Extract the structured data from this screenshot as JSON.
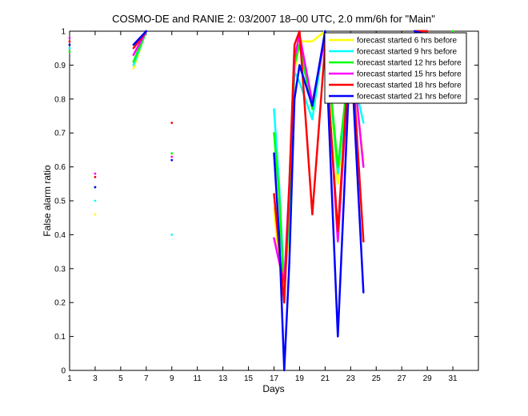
{
  "chart_data": {
    "type": "line",
    "title": "COSMO-DE and RANIE 2: 03/2007 18–00 UTC, 2.0 mm/6h for \"Main\"",
    "xlabel": "Days",
    "ylabel": "False alarm ratio",
    "xlim": [
      1,
      33
    ],
    "ylim": [
      0,
      1
    ],
    "x_ticks": [
      1,
      3,
      5,
      7,
      9,
      11,
      13,
      15,
      17,
      19,
      21,
      23,
      25,
      27,
      29,
      31
    ],
    "y_ticks": [
      0,
      0.1,
      0.2,
      0.3,
      0.4,
      0.5,
      0.6,
      0.7,
      0.8,
      0.9,
      1
    ],
    "legend_position": "top-right",
    "grid": false,
    "series": [
      {
        "name": "forecast started 6 hrs before",
        "color": "#ffff00",
        "segments": [
          [
            [
              1,
              0.96
            ]
          ],
          [
            [
              3,
              0.46
            ]
          ],
          [
            [
              6,
              0.89
            ],
            [
              7,
              1.0
            ]
          ],
          [
            [
              9,
              0.63
            ]
          ],
          [
            [
              17,
              0.48
            ],
            [
              17.4,
              0.32
            ],
            [
              17.8,
              0.24
            ],
            [
              18.2,
              0.42
            ],
            [
              18.6,
              0.88
            ],
            [
              19,
              0.97
            ],
            [
              20,
              0.97
            ],
            [
              21,
              1.0
            ],
            [
              22,
              0.55
            ],
            [
              23,
              0.95
            ],
            [
              24,
              0.62
            ]
          ],
          [
            [
              28,
              1.0
            ],
            [
              29,
              1.0
            ]
          ],
          [
            [
              31,
              1.0
            ]
          ]
        ]
      },
      {
        "name": "forecast started 9 hrs before",
        "color": "#00ffff",
        "segments": [
          [
            [
              1,
              0.95
            ]
          ],
          [
            [
              3,
              0.5
            ]
          ],
          [
            [
              6,
              0.9
            ],
            [
              7,
              1.0
            ]
          ],
          [
            [
              9,
              0.4
            ]
          ],
          [
            [
              17,
              0.77
            ],
            [
              17.4,
              0.55
            ],
            [
              17.8,
              0.25
            ],
            [
              18.2,
              0.45
            ],
            [
              18.6,
              0.88
            ],
            [
              19,
              0.85
            ],
            [
              20,
              0.74
            ],
            [
              21,
              1.0
            ],
            [
              22,
              0.58
            ],
            [
              23,
              0.9
            ],
            [
              24,
              0.73
            ]
          ],
          [
            [
              28,
              1.0
            ],
            [
              29,
              1.0
            ]
          ],
          [
            [
              31,
              0.98
            ]
          ]
        ]
      },
      {
        "name": "forecast started 12 hrs before",
        "color": "#00ff00",
        "segments": [
          [
            [
              1,
              0.94
            ]
          ],
          [
            [
              3,
              0.54
            ]
          ],
          [
            [
              6,
              0.91
            ],
            [
              7,
              1.0
            ]
          ],
          [
            [
              9,
              0.64
            ]
          ],
          [
            [
              17,
              0.7
            ],
            [
              17.4,
              0.52
            ],
            [
              17.8,
              0.22
            ],
            [
              18.2,
              0.5
            ],
            [
              18.6,
              0.9
            ],
            [
              19,
              0.96
            ],
            [
              20,
              0.77
            ],
            [
              21,
              1.0
            ],
            [
              22,
              0.6
            ],
            [
              23,
              0.94
            ],
            [
              24,
              0.86
            ]
          ],
          [
            [
              28,
              1.0
            ],
            [
              29,
              1.0
            ]
          ],
          [
            [
              31,
              1.0
            ]
          ]
        ]
      },
      {
        "name": "forecast started 15 hrs before",
        "color": "#ff00ff",
        "segments": [
          [
            [
              1,
              0.98
            ]
          ],
          [
            [
              3,
              0.58
            ]
          ],
          [
            [
              6,
              0.93
            ],
            [
              7,
              1.0
            ]
          ],
          [
            [
              9,
              0.63
            ]
          ],
          [
            [
              17,
              0.39
            ],
            [
              17.4,
              0.32
            ],
            [
              17.8,
              0.26
            ],
            [
              18.2,
              0.55
            ],
            [
              18.6,
              0.92
            ],
            [
              19,
              0.99
            ],
            [
              20,
              0.79
            ],
            [
              21,
              0.98
            ],
            [
              22,
              0.38
            ],
            [
              23,
              0.98
            ],
            [
              24,
              0.6
            ]
          ],
          [
            [
              28,
              1.0
            ],
            [
              29,
              1.0
            ]
          ],
          [
            [
              31,
              0.83
            ]
          ]
        ]
      },
      {
        "name": "forecast started 18 hrs before",
        "color": "#ff0000",
        "segments": [
          [
            [
              1,
              0.97
            ]
          ],
          [
            [
              3,
              0.57
            ]
          ],
          [
            [
              6,
              0.95
            ],
            [
              7,
              1.0
            ]
          ],
          [
            [
              9,
              0.73
            ]
          ],
          [
            [
              17,
              0.52
            ],
            [
              17.4,
              0.36
            ],
            [
              17.8,
              0.2
            ],
            [
              18.2,
              0.55
            ],
            [
              18.6,
              0.96
            ],
            [
              19,
              1.0
            ],
            [
              20,
              0.46
            ],
            [
              21,
              0.96
            ],
            [
              22,
              0.41
            ],
            [
              23,
              0.99
            ],
            [
              24,
              0.38
            ]
          ],
          [
            [
              28,
              1.0
            ],
            [
              29,
              1.0
            ]
          ],
          [
            [
              31,
              0.91
            ]
          ]
        ]
      },
      {
        "name": "forecast started 21 hrs before",
        "color": "#0000ff",
        "segments": [
          [
            [
              1,
              0.96
            ]
          ],
          [
            [
              3,
              0.54
            ]
          ],
          [
            [
              6,
              0.96
            ],
            [
              7,
              1.0
            ]
          ],
          [
            [
              9,
              0.62
            ]
          ],
          [
            [
              17,
              0.64
            ],
            [
              17.4,
              0.4
            ],
            [
              17.8,
              0.0
            ],
            [
              18.2,
              0.32
            ],
            [
              18.6,
              0.8
            ],
            [
              19,
              0.9
            ],
            [
              20,
              0.78
            ],
            [
              21,
              1.0
            ],
            [
              22,
              0.1
            ],
            [
              23,
              0.96
            ],
            [
              24,
              0.23
            ]
          ],
          [
            [
              28,
              1.0
            ],
            [
              29,
              0.99
            ]
          ],
          [
            [
              31,
              0.98
            ]
          ]
        ]
      }
    ]
  }
}
